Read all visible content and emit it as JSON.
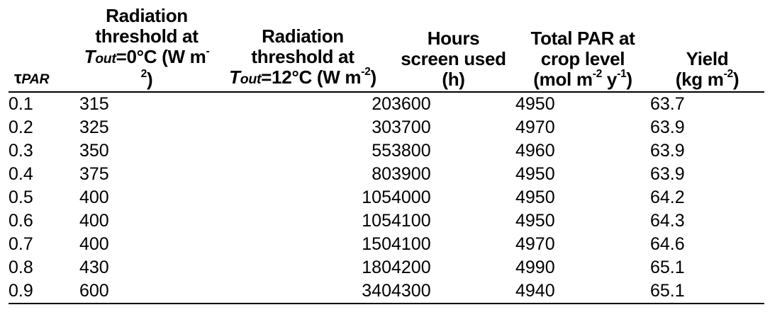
{
  "table": {
    "headers": {
      "tau": {
        "symbol": "τ",
        "sub": "PAR"
      },
      "radiation_0": {
        "line1": "Radiation",
        "line2": "threshold at",
        "t": "T",
        "t_sub": "out",
        "cond": "=0°C (W m",
        "exp": "-2",
        "close": ")"
      },
      "radiation_12": {
        "line1": "Radiation",
        "line2": "threshold at",
        "t": "T",
        "t_sub": "out",
        "cond": "=12°C (W m",
        "exp": "-2",
        "close": ")"
      },
      "hours": {
        "line1": "Hours",
        "line2": "screen used",
        "line3": "(h)"
      },
      "total_par": {
        "line1": "Total PAR at",
        "line2": "crop level",
        "line3a": "(mol m",
        "exp1": "-2",
        "line3b": " y",
        "exp2": "-1",
        "line3c": ")"
      },
      "yield": {
        "line1": "Yield",
        "line2a": "(kg m",
        "exp": "-2",
        "line2b": ")"
      }
    },
    "rows": [
      {
        "tau": "0.1",
        "rad0": "315",
        "rad12": "20",
        "hours": "3600",
        "par": "4950",
        "yield": "63.7"
      },
      {
        "tau": "0.2",
        "rad0": "325",
        "rad12": "30",
        "hours": "3700",
        "par": "4970",
        "yield": "63.9"
      },
      {
        "tau": "0.3",
        "rad0": "350",
        "rad12": "55",
        "hours": "3800",
        "par": "4960",
        "yield": "63.9"
      },
      {
        "tau": "0.4",
        "rad0": "375",
        "rad12": "80",
        "hours": "3900",
        "par": "4950",
        "yield": "63.9"
      },
      {
        "tau": "0.5",
        "rad0": "400",
        "rad12": "105",
        "hours": "4000",
        "par": "4950",
        "yield": "64.2"
      },
      {
        "tau": "0.6",
        "rad0": "400",
        "rad12": "105",
        "hours": "4100",
        "par": "4950",
        "yield": "64.3"
      },
      {
        "tau": "0.7",
        "rad0": "400",
        "rad12": "150",
        "hours": "4100",
        "par": "4970",
        "yield": "64.6"
      },
      {
        "tau": "0.8",
        "rad0": "430",
        "rad12": "180",
        "hours": "4200",
        "par": "4990",
        "yield": "65.1"
      },
      {
        "tau": "0.9",
        "rad0": "600",
        "rad12": "340",
        "hours": "4300",
        "par": "4940",
        "yield": "65.1"
      }
    ]
  }
}
